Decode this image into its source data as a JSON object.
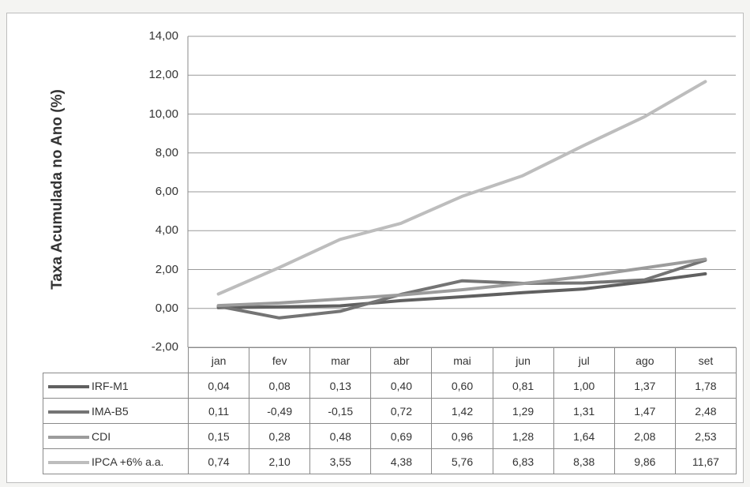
{
  "chart_data": {
    "type": "line",
    "ylabel": "Taxa Acumulada no Ano (%)",
    "ylim": [
      -2,
      14
    ],
    "yticks": [
      "14,00",
      "12,00",
      "10,00",
      "8,00",
      "6,00",
      "4,00",
      "2,00",
      "0,00",
      "-2,00"
    ],
    "yticks_values": [
      14,
      12,
      10,
      8,
      6,
      4,
      2,
      0,
      -2
    ],
    "grid": true,
    "legend_placement": "data-table-below",
    "categories": [
      "jan",
      "fev",
      "mar",
      "abr",
      "mai",
      "jun",
      "jul",
      "ago",
      "set"
    ],
    "series": [
      {
        "name": "IRF-M1",
        "color": "#606060",
        "values": [
          0.04,
          0.08,
          0.13,
          0.4,
          0.6,
          0.81,
          1.0,
          1.37,
          1.78
        ],
        "labels": [
          "0,04",
          "0,08",
          "0,13",
          "0,40",
          "0,60",
          "0,81",
          "1,00",
          "1,37",
          "1,78"
        ]
      },
      {
        "name": "IMA-B5",
        "color": "#747474",
        "values": [
          0.11,
          -0.49,
          -0.15,
          0.72,
          1.42,
          1.29,
          1.31,
          1.47,
          2.48
        ],
        "labels": [
          "0,11",
          "-0,49",
          "-0,15",
          "0,72",
          "1,42",
          "1,29",
          "1,31",
          "1,47",
          "2,48"
        ]
      },
      {
        "name": "CDI",
        "color": "#9c9c9c",
        "values": [
          0.15,
          0.28,
          0.48,
          0.69,
          0.96,
          1.28,
          1.64,
          2.08,
          2.53
        ],
        "labels": [
          "0,15",
          "0,28",
          "0,48",
          "0,69",
          "0,96",
          "1,28",
          "1,64",
          "2,08",
          "2,53"
        ]
      },
      {
        "name": "IPCA +6% a.a.",
        "color": "#bdbdbd",
        "values": [
          0.74,
          2.1,
          3.55,
          4.38,
          5.76,
          6.83,
          8.38,
          9.86,
          11.67
        ],
        "labels": [
          "0,74",
          "2,10",
          "3,55",
          "4,38",
          "5,76",
          "6,83",
          "8,38",
          "9,86",
          "11,67"
        ]
      }
    ]
  }
}
